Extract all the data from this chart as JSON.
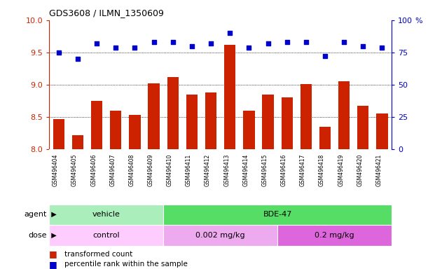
{
  "title": "GDS3608 / ILMN_1350609",
  "samples": [
    "GSM496404",
    "GSM496405",
    "GSM496406",
    "GSM496407",
    "GSM496408",
    "GSM496409",
    "GSM496410",
    "GSM496411",
    "GSM496412",
    "GSM496413",
    "GSM496414",
    "GSM496415",
    "GSM496416",
    "GSM496417",
    "GSM496418",
    "GSM496419",
    "GSM496420",
    "GSM496421"
  ],
  "bar_values": [
    8.47,
    8.22,
    8.75,
    8.6,
    8.53,
    9.02,
    9.12,
    8.85,
    8.88,
    9.62,
    8.6,
    8.85,
    8.8,
    9.01,
    8.35,
    9.05,
    8.67,
    8.55
  ],
  "dot_values": [
    75,
    70,
    82,
    79,
    79,
    83,
    83,
    80,
    82,
    90,
    79,
    82,
    83,
    83,
    72,
    83,
    80,
    79
  ],
  "ylim_left": [
    8.0,
    10.0
  ],
  "ylim_right": [
    0,
    100
  ],
  "yticks_left": [
    8.0,
    8.5,
    9.0,
    9.5,
    10.0
  ],
  "yticks_right": [
    0,
    25,
    50,
    75,
    100
  ],
  "bar_color": "#cc2200",
  "dot_color": "#0000cc",
  "grid_dotted_values": [
    8.5,
    9.0,
    9.5
  ],
  "agent_labels": [
    {
      "label": "vehicle",
      "start": 0,
      "end": 6,
      "color": "#aaeebb"
    },
    {
      "label": "BDE-47",
      "start": 6,
      "end": 18,
      "color": "#55dd66"
    }
  ],
  "dose_labels": [
    {
      "label": "control",
      "start": 0,
      "end": 6,
      "color": "#ffccff"
    },
    {
      "label": "0.002 mg/kg",
      "start": 6,
      "end": 12,
      "color": "#eeaaee"
    },
    {
      "label": "0.2 mg/kg",
      "start": 12,
      "end": 18,
      "color": "#dd66dd"
    }
  ],
  "legend_bar_label": "transformed count",
  "legend_dot_label": "percentile rank within the sample",
  "label_agent": "agent",
  "label_dose": "dose",
  "sample_bg": "#d8d8d8",
  "plot_bg": "#ffffff",
  "fig_bg": "#ffffff"
}
